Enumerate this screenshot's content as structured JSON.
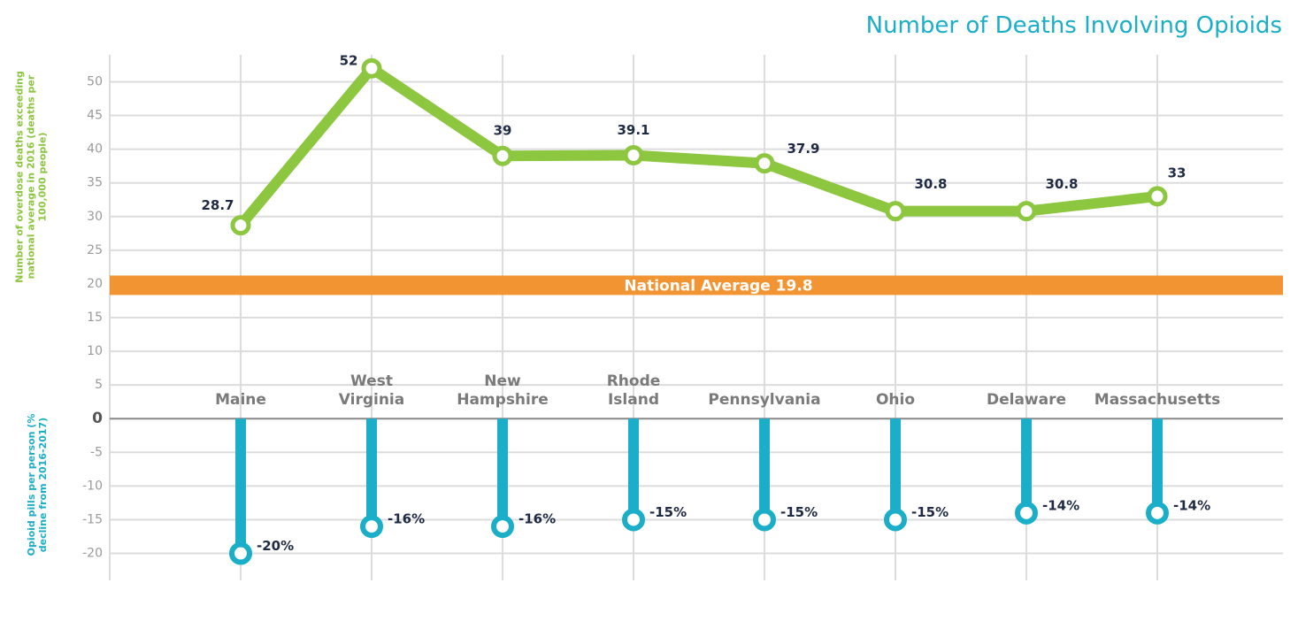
{
  "chart_data": {
    "type": "line_lollipop",
    "title": "Number of Deaths Involving Opioids",
    "y_label_upper": "Number of overdose deaths exceeding national average in 2016 (deaths per 100,000 people)",
    "y_label_lower": "Opioid pills per person (% decline from 2016-2017)",
    "categories": [
      "Maine",
      "West Virginia",
      "New Hampshire",
      "Rhode Island",
      "Pennsylvania",
      "Ohio",
      "Delaware",
      "Massachusetts"
    ],
    "series": [
      {
        "type": "line",
        "color": "#8dc63f",
        "values": [
          28.7,
          52,
          39,
          39.1,
          37.9,
          30.8,
          30.8,
          33
        ]
      },
      {
        "type": "lollipop",
        "color": "#1aaec8",
        "values": [
          -20,
          -16,
          -16,
          -15,
          -15,
          -15,
          -14,
          -14
        ],
        "value_labels": [
          "-20%",
          "-16%",
          "-16%",
          "-15%",
          "-15%",
          "-15%",
          "-14%",
          "-14%"
        ]
      }
    ],
    "national_average": 19.8,
    "national_average_label": "National Average 19.8",
    "national_average_color": "#f39433",
    "ylim": [
      -24,
      54
    ],
    "yticks": [
      -20,
      -15,
      -10,
      -5,
      0,
      5,
      10,
      15,
      20,
      25,
      30,
      35,
      40,
      45,
      50
    ],
    "grid": true
  }
}
